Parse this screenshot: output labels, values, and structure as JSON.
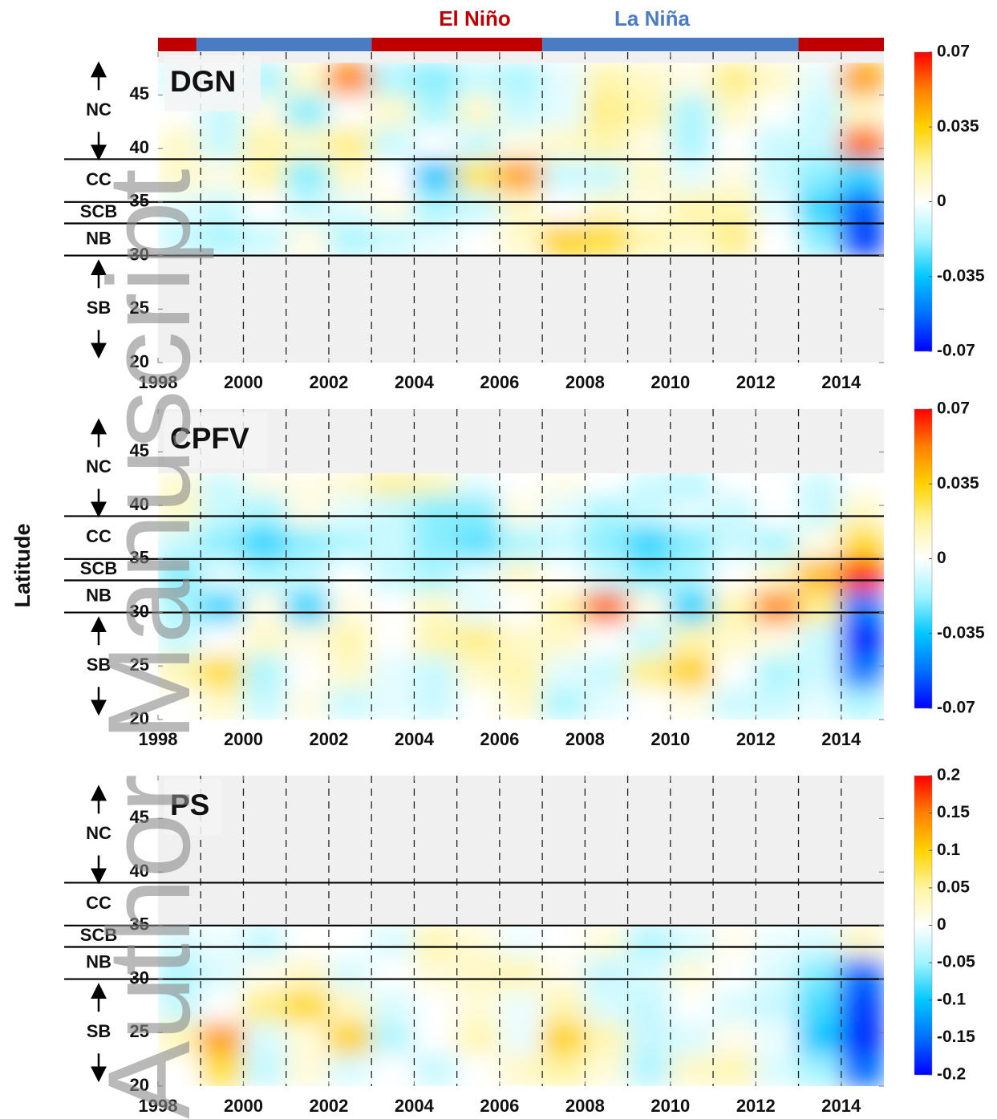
{
  "ylabel": "Latitude",
  "watermark": "Author Manuscript",
  "chart_data": [
    {
      "type": "heatmap",
      "title": "DGN",
      "enso": [
        {
          "name": "El Niño",
          "color": "#c00000",
          "periods": [
            [
              1998,
              1998.9
            ],
            [
              2003,
              2007
            ],
            [
              2013,
              2015
            ]
          ]
        },
        {
          "name": "La Niña",
          "color": "#4a7cc4",
          "periods": [
            [
              1998.9,
              2003
            ],
            [
              2007,
              2013
            ]
          ]
        }
      ],
      "regions": [
        "NC",
        "CC",
        "SCB",
        "NB",
        "SB"
      ],
      "region_boundaries": [
        30,
        33,
        35,
        39
      ],
      "xlim": [
        1998,
        2015
      ],
      "xticks": [
        1998,
        2000,
        2002,
        2004,
        2006,
        2008,
        2010,
        2012,
        2014
      ],
      "ylim": [
        20,
        49
      ],
      "yticks": [
        20,
        25,
        30,
        35,
        40,
        45
      ],
      "clim": [
        -0.07,
        0.07
      ],
      "cticks": [
        -0.07,
        -0.035,
        0,
        0.035,
        0.07
      ],
      "colormap": [
        "#0000ff",
        "#0070ff",
        "#00c8ff",
        "#a0f4ff",
        "#ffffff",
        "#fff4a0",
        "#ffd200",
        "#ff8000",
        "#ff0000"
      ],
      "xbins": [
        1998,
        1999,
        2000,
        2001,
        2002,
        2003,
        2004,
        2005,
        2006,
        2007,
        2008,
        2009,
        2010,
        2011,
        2012,
        2013,
        2014,
        2015
      ],
      "ybins": [
        30,
        33,
        36,
        39,
        42,
        45,
        48
      ],
      "z": [
        [
          -0.01,
          -0.015,
          -0.01,
          0.005,
          -0.015,
          -0.01,
          -0.005,
          0.0,
          0.01,
          0.035,
          0.03,
          0.015,
          0.01,
          0.02,
          0.0,
          -0.02,
          -0.06
        ],
        [
          -0.005,
          -0.01,
          0.0,
          -0.01,
          -0.005,
          0.005,
          -0.015,
          -0.01,
          0.01,
          0.0,
          0.01,
          0.005,
          0.015,
          0.015,
          -0.005,
          -0.03,
          -0.055
        ],
        [
          0.01,
          0.005,
          0.015,
          -0.02,
          0.01,
          0.0,
          -0.035,
          0.025,
          0.045,
          -0.01,
          -0.01,
          0.01,
          -0.005,
          0.005,
          -0.01,
          -0.02,
          -0.03
        ],
        [
          0.01,
          -0.01,
          0.015,
          0.01,
          0.02,
          -0.01,
          0.0,
          -0.01,
          0.005,
          0.01,
          0.015,
          0.005,
          -0.015,
          0.0,
          -0.01,
          -0.01,
          0.055
        ],
        [
          0.0,
          -0.01,
          0.005,
          -0.02,
          0.0,
          0.01,
          -0.015,
          0.01,
          -0.01,
          -0.005,
          0.02,
          0.015,
          -0.015,
          0.01,
          0.0,
          -0.01,
          0.01
        ],
        [
          -0.01,
          0.0,
          -0.015,
          0.01,
          0.05,
          -0.015,
          -0.02,
          -0.01,
          -0.015,
          -0.005,
          0.015,
          0.01,
          0.005,
          0.02,
          0.01,
          -0.005,
          0.045
        ]
      ]
    },
    {
      "type": "heatmap",
      "title": "CPFV",
      "regions": [
        "NC",
        "CC",
        "SCB",
        "NB",
        "SB"
      ],
      "region_boundaries": [
        30,
        33,
        35,
        39
      ],
      "xlim": [
        1998,
        2015
      ],
      "xticks": [
        1998,
        2000,
        2002,
        2004,
        2006,
        2008,
        2010,
        2012,
        2014
      ],
      "ylim": [
        20,
        49
      ],
      "yticks": [
        20,
        25,
        30,
        35,
        40,
        45
      ],
      "clim": [
        -0.07,
        0.07
      ],
      "cticks": [
        -0.07,
        -0.035,
        0,
        0.035,
        0.07
      ],
      "colormap": [
        "#0000ff",
        "#0070ff",
        "#00c8ff",
        "#a0f4ff",
        "#ffffff",
        "#fff4a0",
        "#ffd200",
        "#ff8000",
        "#ff0000"
      ],
      "xbins": [
        1998,
        1999,
        2000,
        2001,
        2002,
        2003,
        2004,
        2005,
        2006,
        2007,
        2008,
        2009,
        2010,
        2011,
        2012,
        2013,
        2014,
        2015
      ],
      "ybins": [
        20,
        23,
        26,
        29,
        32,
        35,
        38,
        41,
        43
      ],
      "z": [
        [
          0.0,
          0.01,
          -0.01,
          0.005,
          -0.01,
          -0.005,
          -0.01,
          0.0,
          0.01,
          -0.015,
          -0.005,
          0.0,
          0.005,
          -0.01,
          -0.01,
          -0.005,
          -0.015
        ],
        [
          0.015,
          0.03,
          -0.015,
          0.0,
          0.01,
          -0.005,
          -0.01,
          0.01,
          0.015,
          -0.005,
          -0.01,
          0.02,
          0.035,
          0.0,
          -0.015,
          -0.01,
          -0.05
        ],
        [
          -0.01,
          0.0,
          0.01,
          0.005,
          0.015,
          0.0,
          0.015,
          0.02,
          0.01,
          0.01,
          0.0,
          -0.01,
          0.015,
          0.01,
          0.005,
          -0.01,
          -0.065
        ],
        [
          -0.015,
          -0.03,
          0.005,
          -0.03,
          0.005,
          0.0,
          0.01,
          -0.005,
          0.0,
          0.015,
          0.055,
          0.005,
          -0.03,
          0.015,
          0.05,
          0.02,
          -0.05
        ],
        [
          -0.02,
          -0.005,
          -0.015,
          -0.01,
          0.0,
          -0.01,
          -0.015,
          -0.005,
          0.01,
          0.0,
          -0.01,
          -0.02,
          -0.015,
          0.0,
          0.01,
          0.04,
          0.065
        ],
        [
          -0.01,
          -0.02,
          -0.03,
          -0.02,
          -0.015,
          -0.01,
          -0.02,
          -0.025,
          -0.015,
          -0.01,
          -0.02,
          -0.03,
          -0.02,
          -0.01,
          -0.015,
          0.005,
          0.03
        ],
        [
          0.01,
          -0.01,
          -0.015,
          0.005,
          -0.005,
          -0.01,
          -0.02,
          -0.02,
          0.005,
          -0.005,
          -0.015,
          -0.01,
          -0.005,
          -0.01,
          0.0,
          -0.01,
          0.01
        ],
        [
          0.01,
          -0.01,
          0.005,
          0.005,
          0.01,
          0.02,
          0.015,
          -0.005,
          0.0,
          0.005,
          0.0,
          -0.01,
          -0.015,
          0.0,
          0.0,
          -0.01,
          0.0
        ]
      ]
    },
    {
      "type": "heatmap",
      "title": "PS",
      "regions": [
        "NC",
        "CC",
        "SCB",
        "NB",
        "SB"
      ],
      "region_boundaries": [
        30,
        33,
        35,
        39
      ],
      "xlim": [
        1998,
        2015
      ],
      "xticks": [
        1998,
        2000,
        2002,
        2004,
        2006,
        2008,
        2010,
        2012,
        2014
      ],
      "ylim": [
        20,
        49
      ],
      "yticks": [
        20,
        25,
        30,
        35,
        40,
        45
      ],
      "clim": [
        -0.2,
        0.2
      ],
      "cticks": [
        -0.2,
        -0.15,
        -0.1,
        -0.05,
        0,
        0.05,
        0.1,
        0.15,
        0.2
      ],
      "colormap": [
        "#0000ff",
        "#0070ff",
        "#00c8ff",
        "#a0f4ff",
        "#ffffff",
        "#fff4a0",
        "#ffd200",
        "#ff8000",
        "#ff0000"
      ],
      "xbins": [
        1998,
        1999,
        2000,
        2001,
        2002,
        2003,
        2004,
        2005,
        2006,
        2007,
        2008,
        2009,
        2010,
        2011,
        2012,
        2013,
        2014,
        2015
      ],
      "ybins": [
        20,
        23,
        26,
        29,
        32,
        35
      ],
      "z": [
        [
          0.0,
          0.08,
          -0.03,
          0.02,
          -0.02,
          0.0,
          -0.03,
          0.0,
          0.03,
          0.05,
          0.02,
          -0.04,
          0.03,
          0.04,
          -0.02,
          -0.05,
          -0.15
        ],
        [
          0.04,
          0.13,
          -0.02,
          0.02,
          0.1,
          -0.04,
          0.0,
          0.04,
          -0.01,
          0.1,
          0.04,
          -0.03,
          -0.02,
          0.01,
          -0.01,
          -0.1,
          -0.18
        ],
        [
          -0.03,
          0.0,
          0.06,
          0.09,
          0.03,
          -0.02,
          0.0,
          0.02,
          -0.01,
          0.04,
          -0.02,
          -0.03,
          0.0,
          -0.02,
          -0.03,
          -0.08,
          -0.17
        ],
        [
          -0.04,
          -0.02,
          0.01,
          0.03,
          -0.02,
          0.0,
          0.02,
          0.03,
          0.04,
          0.01,
          -0.03,
          -0.02,
          0.02,
          0.0,
          -0.02,
          -0.06,
          -0.15
        ],
        [
          -0.02,
          -0.01,
          -0.03,
          0.0,
          0.0,
          -0.02,
          0.04,
          0.02,
          -0.01,
          0.0,
          0.02,
          -0.04,
          -0.02,
          0.01,
          -0.01,
          -0.02,
          0.03
        ]
      ]
    }
  ]
}
